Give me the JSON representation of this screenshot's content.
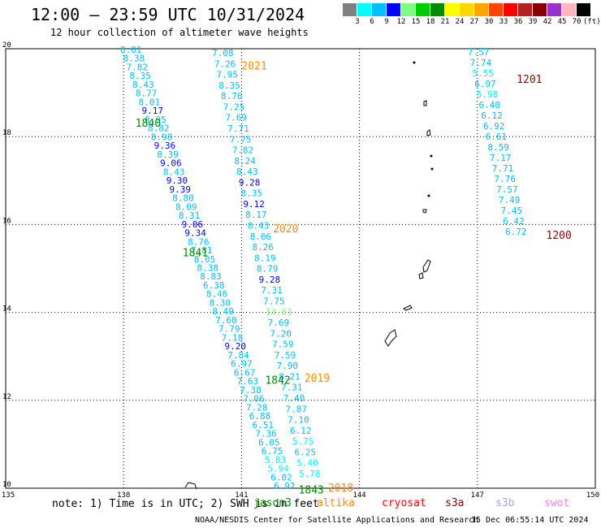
{
  "title": "12:00 – 23:59 UTC 10/31/2024",
  "subtitle": "12 hour collection of altimeter wave heights",
  "colorbar": {
    "labels": [
      "3",
      "6",
      "9",
      "12",
      "15",
      "18",
      "21",
      "24",
      "27",
      "30",
      "33",
      "36",
      "39",
      "42",
      "45",
      "70",
      "(ft)"
    ],
    "colors": [
      "#808080",
      "#00ffff",
      "#00bfff",
      "#0000ff",
      "#7fff7f",
      "#00cd00",
      "#008b00",
      "#ffff00",
      "#ffd700",
      "#ffa500",
      "#ff4500",
      "#ff0000",
      "#b22222",
      "#8b0000",
      "#9932cc",
      "#ffb6c1",
      "#000000"
    ]
  },
  "axes": {
    "lon_ticks": [
      "135",
      "138",
      "141",
      "144",
      "147",
      "150"
    ],
    "lat_ticks": [
      "20",
      "18",
      "16",
      "14",
      "12",
      "10"
    ]
  },
  "tracks": [
    {
      "label": "2021",
      "label_color": "#ff8c00",
      "label_lat": 19.6,
      "label_lon": 141.0
    },
    {
      "label": "1840",
      "label_color": "#008b00",
      "label_lat": 18.3,
      "label_lon": 138.3
    },
    {
      "label": "1201",
      "label_color": "#8b0000",
      "label_lat": 19.3,
      "label_lon": 148.0
    },
    {
      "label": "1200",
      "label_color": "#8b0000",
      "label_lat": 15.75,
      "label_lon": 148.75
    },
    {
      "label": "2020",
      "label_color": "#ff8c00",
      "label_lat": 15.9,
      "label_lon": 141.8
    },
    {
      "label": "1841",
      "label_color": "#008b00",
      "label_lat": 15.35,
      "label_lon": 139.5
    },
    {
      "label": "2019",
      "label_color": "#ff8c00",
      "label_lat": 12.5,
      "label_lon": 142.6
    },
    {
      "label": "1842",
      "label_color": "#008b00",
      "label_lat": 12.45,
      "label_lon": 141.6
    },
    {
      "label": "1843",
      "label_color": "#008b00",
      "label_lat": 9.95,
      "label_lon": 142.45
    },
    {
      "label": "2018",
      "label_color": "#ff8c00",
      "label_lat": 10.0,
      "label_lon": 143.2
    }
  ],
  "points_a": [
    "8.01",
    "8.38",
    "7.82",
    "8.35",
    "8.43",
    "8.77",
    "8.01",
    "9.17",
    "8.95",
    "8.82",
    "8.98",
    "9.36",
    "8.39",
    "9.06",
    "8.43",
    "9.30",
    "9.39",
    "8.80",
    "8.09",
    "8.31",
    "9.06",
    "9.34",
    "8.76",
    "7.81",
    "8.05",
    "8.38",
    "8.83",
    "6.38",
    "8.46",
    "8.30",
    "8.49",
    "7.60",
    "7.79",
    "7.18",
    "9.20",
    "7.84",
    "6.97",
    "6.67",
    "7.63",
    "7.38",
    "7.06",
    "7.28",
    "6.88",
    "6.51",
    "7.36",
    "6.05",
    "6.75",
    "5.83",
    "5.94",
    "6.02",
    "6.92"
  ],
  "points_b": [
    "7.08",
    "7.26",
    "7.95",
    "8.35",
    "8.76",
    "7.25",
    "7.69",
    "7.71",
    "7.75",
    "7.82",
    "8.24",
    "8.43",
    "9.28",
    "8.35",
    "9.12",
    "8.17",
    "8.43",
    "8.06",
    "8.26",
    "8.19",
    "8.79",
    "9.28",
    "7.31",
    "7.75",
    "14.61",
    "7.69",
    "7.20",
    "7.59",
    "7.59",
    "7.90",
    "8.21",
    "7.31",
    "7.40",
    "7.87",
    "7.10",
    "6.12",
    "5.75",
    "6.25",
    "5.40",
    "5.78"
  ],
  "points_c": [
    "7.57",
    "7.74",
    "5.55",
    "6.97",
    "5.98",
    "6.40",
    "6.12",
    "6.92",
    "6.61",
    "8.59",
    "7.17",
    "7.71",
    "7.76",
    "7.57",
    "7.49",
    "7.45",
    "6.42",
    "6.72"
  ],
  "note": "note: 1) Time is in UTC; 2) SWH is in feet",
  "satellites": [
    {
      "name": "jason3",
      "color": "#008b00"
    },
    {
      "name": "altika",
      "color": "#ff8c00"
    },
    {
      "name": "cryosat",
      "color": "#ff0000"
    },
    {
      "name": "s3a",
      "color": "#8b0000"
    },
    {
      "name": "s3b",
      "color": "#b0a0e0"
    },
    {
      "name": "swot",
      "color": "#ee82ee"
    }
  ],
  "footer_credit": "NOAA/NESDIS Center for Satellite Applications and Research",
  "footer_time": "15 Dec 06:55:14 UTC 2024"
}
